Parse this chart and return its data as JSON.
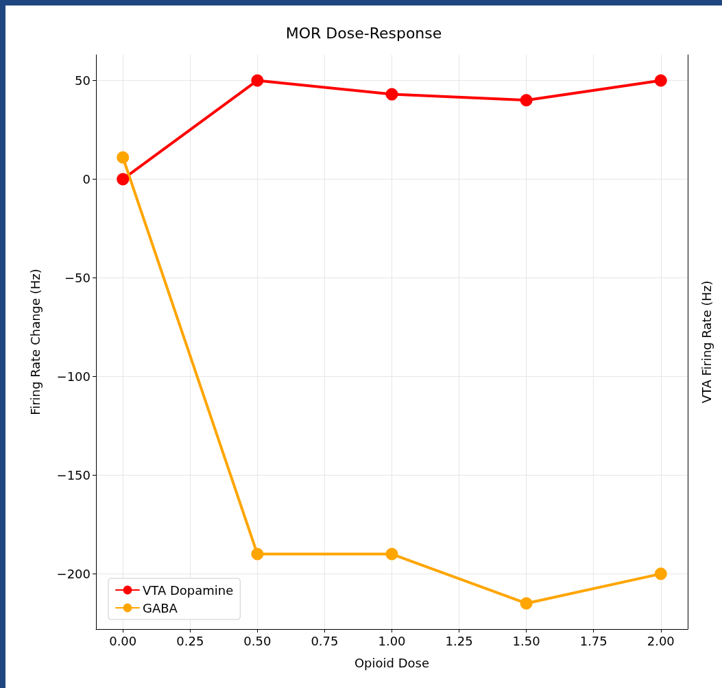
{
  "chart_data": {
    "type": "line",
    "title": "MOR Dose-Response",
    "xlabel": "Opioid Dose",
    "ylabel": "Firing Rate Change (Hz)",
    "y2label": "VTA Firing Rate (Hz)",
    "x": [
      0,
      0.5,
      1,
      1.5,
      2
    ],
    "series": [
      {
        "name": "VTA Dopamine",
        "color": "#ff0000",
        "values": [
          0,
          50,
          43,
          40,
          50
        ]
      },
      {
        "name": "GABA",
        "color": "#ffa500",
        "values": [
          11,
          -190,
          -190,
          -215,
          -200
        ]
      }
    ],
    "xlim": [
      -0.1,
      2.1
    ],
    "xticks": [
      {
        "value": 0,
        "label": "0.00"
      },
      {
        "value": 0.25,
        "label": "0.25"
      },
      {
        "value": 0.5,
        "label": "0.50"
      },
      {
        "value": 0.75,
        "label": "0.75"
      },
      {
        "value": 1,
        "label": "1.00"
      },
      {
        "value": 1.25,
        "label": "1.25"
      },
      {
        "value": 1.5,
        "label": "1.50"
      },
      {
        "value": 1.75,
        "label": "1.75"
      },
      {
        "value": 2,
        "label": "2.00"
      }
    ],
    "ylim": [
      -228,
      63
    ],
    "yticks": [
      -200,
      -150,
      -100,
      -50,
      0,
      50
    ],
    "grid": true,
    "legend": "bottom left",
    "marker": "circle",
    "line_style": "solid"
  }
}
